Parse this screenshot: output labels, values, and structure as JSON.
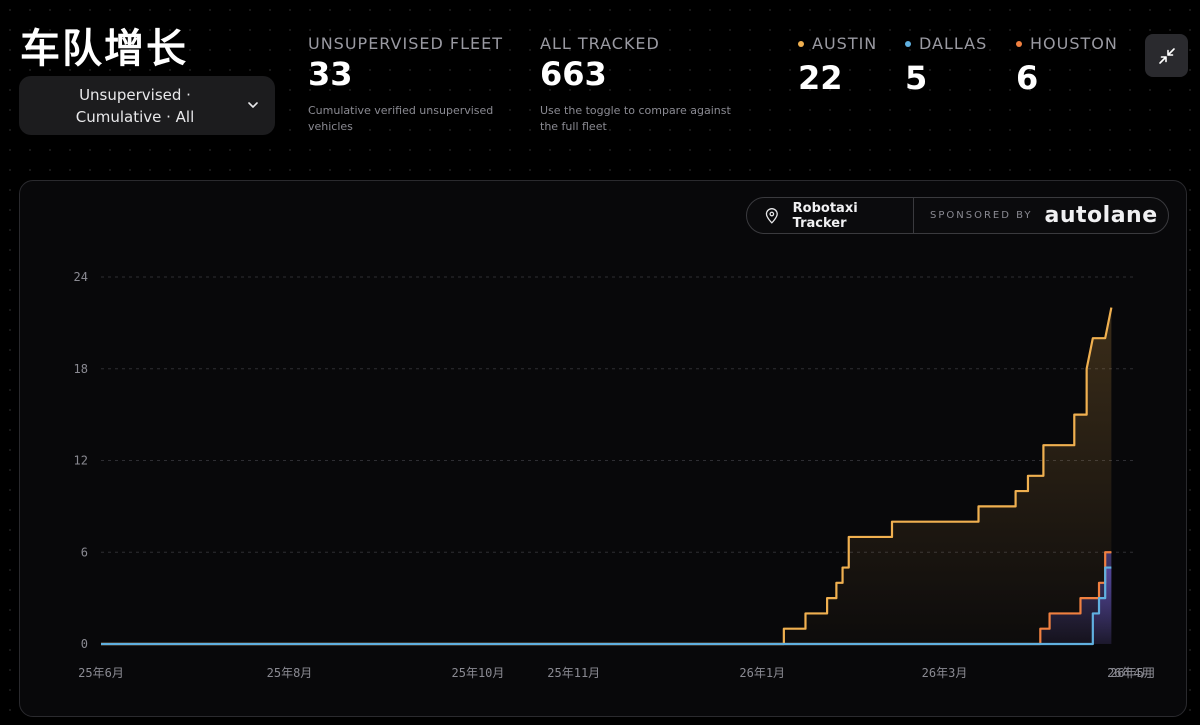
{
  "header": {
    "title": "车队增长",
    "filter_label": "Unsupervised · Cumulative · All"
  },
  "stats": {
    "unsupervised": {
      "label": "UNSUPERVISED FLEET",
      "value": "33",
      "desc": "Cumulative verified unsupervised vehicles"
    },
    "all_tracked": {
      "label": "ALL TRACKED",
      "value": "663",
      "desc": "Use the toggle to compare against the full fleet"
    }
  },
  "cities": [
    {
      "label": "AUSTIN",
      "value": "22",
      "color": "#f0b050"
    },
    {
      "label": "DALLAS",
      "value": "5",
      "color": "#60b0e0"
    },
    {
      "label": "HOUSTON",
      "value": "6",
      "color": "#f08040"
    }
  ],
  "badge": {
    "tracker_label": "Robotaxi Tracker",
    "sponsor_label": "SPONSORED BY",
    "sponsor_brand": "autolane"
  },
  "chart_data": {
    "type": "line",
    "x_format": "YY年M月",
    "x_tick_labels": [
      "25年6月",
      "25年8月",
      "25年10月",
      "25年11月",
      "26年1月",
      "26年3月",
      "26年4月",
      "26年5月"
    ],
    "x_tick_dates": [
      "2025-06-01",
      "2025-08-01",
      "2025-10-01",
      "2025-11-01",
      "2026-01-01",
      "2026-03-01",
      "2026-04-30",
      "2026-05-01"
    ],
    "xlim": [
      "2025-06-01",
      "2026-05-01"
    ],
    "ylim": [
      0,
      24
    ],
    "y_ticks": [
      0,
      6,
      12,
      18,
      24
    ],
    "grid": true,
    "series": [
      {
        "name": "AUSTIN",
        "color": "#f0b050",
        "points": [
          [
            "2025-06-01",
            0
          ],
          [
            "2026-01-08",
            0
          ],
          [
            "2026-01-08",
            1
          ],
          [
            "2026-01-15",
            1
          ],
          [
            "2026-01-15",
            2
          ],
          [
            "2026-01-22",
            2
          ],
          [
            "2026-01-22",
            3
          ],
          [
            "2026-01-25",
            3
          ],
          [
            "2026-01-25",
            4
          ],
          [
            "2026-01-27",
            4
          ],
          [
            "2026-01-27",
            5
          ],
          [
            "2026-01-29",
            5
          ],
          [
            "2026-01-29",
            7
          ],
          [
            "2026-02-12",
            7
          ],
          [
            "2026-02-12",
            8
          ],
          [
            "2026-03-12",
            8
          ],
          [
            "2026-03-12",
            9
          ],
          [
            "2026-03-24",
            9
          ],
          [
            "2026-03-24",
            10
          ],
          [
            "2026-03-28",
            10
          ],
          [
            "2026-03-28",
            11
          ],
          [
            "2026-04-02",
            11
          ],
          [
            "2026-04-02",
            13
          ],
          [
            "2026-04-12",
            13
          ],
          [
            "2026-04-12",
            15
          ],
          [
            "2026-04-16",
            15
          ],
          [
            "2026-04-16",
            18
          ],
          [
            "2026-04-18",
            20
          ],
          [
            "2026-04-22",
            20
          ],
          [
            "2026-04-24",
            22
          ]
        ]
      },
      {
        "name": "HOUSTON",
        "color": "#f08040",
        "points": [
          [
            "2025-06-01",
            0
          ],
          [
            "2026-04-01",
            0
          ],
          [
            "2026-04-01",
            1
          ],
          [
            "2026-04-04",
            1
          ],
          [
            "2026-04-04",
            2
          ],
          [
            "2026-04-14",
            2
          ],
          [
            "2026-04-14",
            3
          ],
          [
            "2026-04-20",
            3
          ],
          [
            "2026-04-20",
            4
          ],
          [
            "2026-04-22",
            4
          ],
          [
            "2026-04-22",
            6
          ],
          [
            "2026-04-24",
            6
          ]
        ]
      },
      {
        "name": "DALLAS",
        "color": "#60b0e0",
        "points": [
          [
            "2025-06-01",
            0
          ],
          [
            "2026-04-18",
            0
          ],
          [
            "2026-04-18",
            2
          ],
          [
            "2026-04-20",
            2
          ],
          [
            "2026-04-20",
            3
          ],
          [
            "2026-04-22",
            3
          ],
          [
            "2026-04-22",
            5
          ],
          [
            "2026-04-24",
            5
          ]
        ]
      }
    ]
  }
}
